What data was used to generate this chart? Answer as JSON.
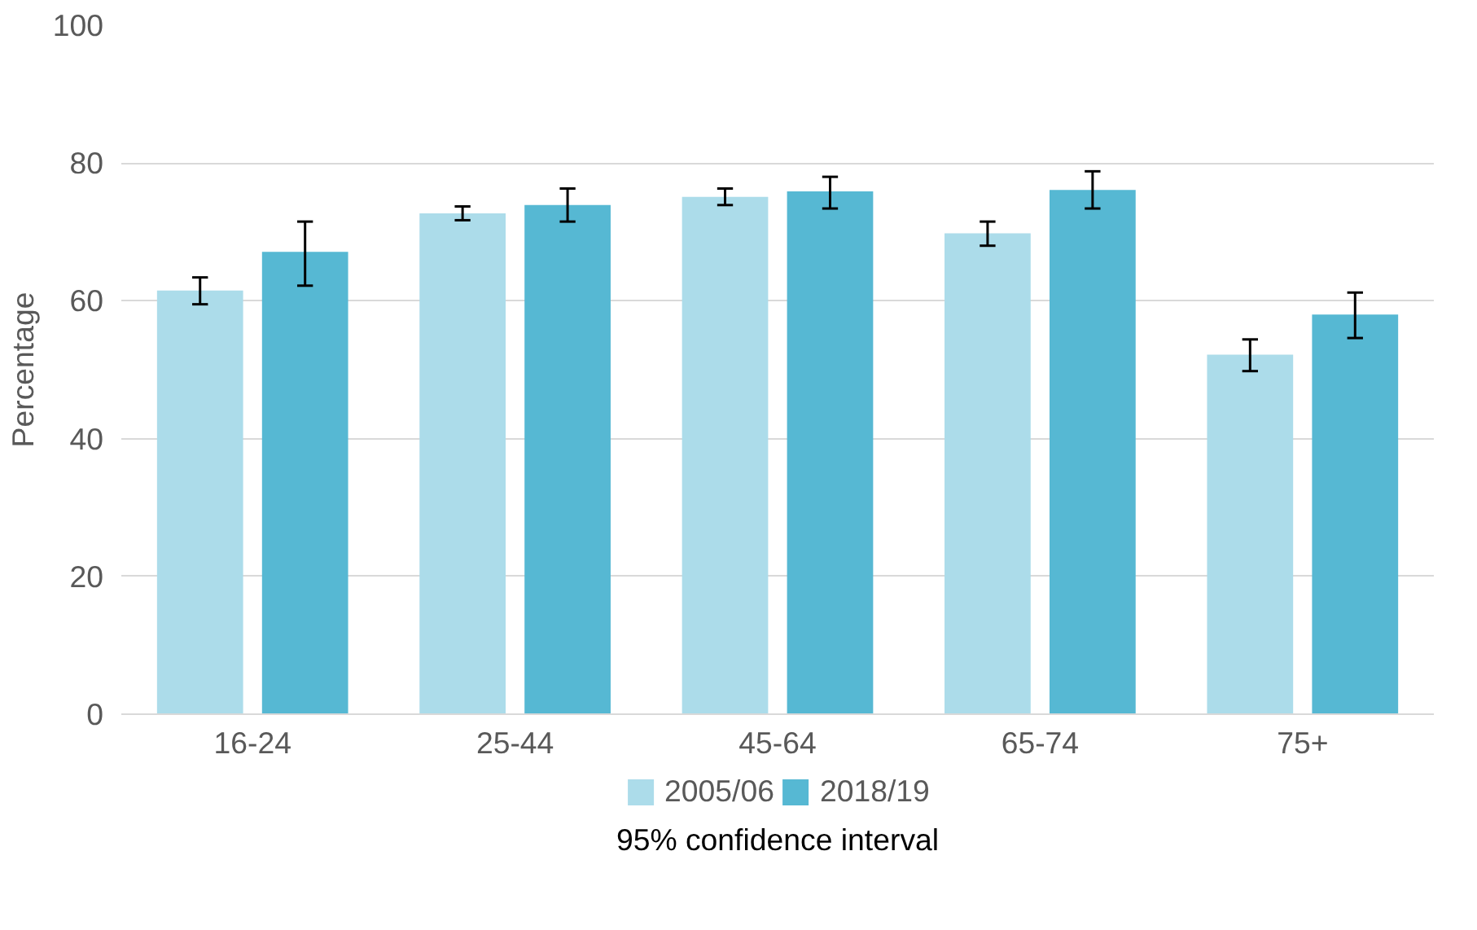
{
  "chart_data": {
    "type": "bar",
    "ylabel": "Percentage",
    "categories": [
      "16-24",
      "25-44",
      "45-64",
      "65-74",
      "75+"
    ],
    "series": [
      {
        "name": "2005/06",
        "color": "#acdcea",
        "values": [
          61.5,
          72.7,
          75.1,
          69.8,
          52.2
        ],
        "errors": [
          [
            59.5,
            63.4
          ],
          [
            71.7,
            73.7
          ],
          [
            73.9,
            76.3
          ],
          [
            68,
            71.5
          ],
          [
            49.8,
            54.4
          ]
        ]
      },
      {
        "name": "2018/19",
        "color": "#56b8d3",
        "values": [
          67.1,
          73.9,
          75.9,
          76.1,
          58
        ],
        "errors": [
          [
            62.2,
            71.5
          ],
          [
            71.5,
            76.3
          ],
          [
            73.4,
            78
          ],
          [
            73.4,
            78.8
          ],
          [
            54.6,
            61.2
          ]
        ]
      }
    ],
    "ylim": [
      0,
      100
    ],
    "yticks": [
      0,
      20,
      40,
      60,
      80,
      100
    ],
    "grid": "y",
    "legend": "bottom",
    "annotations": [
      "95% confidence interval"
    ]
  }
}
